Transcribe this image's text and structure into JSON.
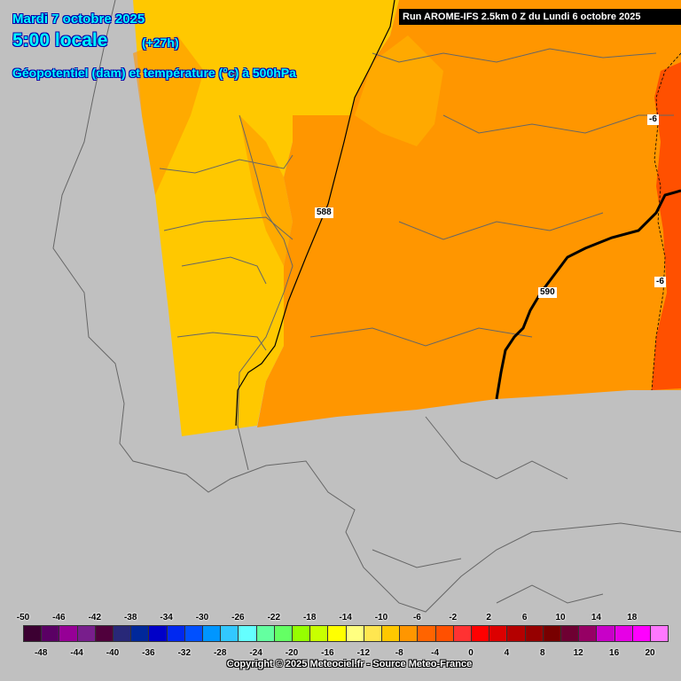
{
  "header": {
    "date": "Mardi 7 octobre 2025",
    "time": "5:00 locale",
    "lead": "(+27h)",
    "parameter": "Géopotentiel (dam) et température (°c) à 500hPa"
  },
  "run_banner": "Run AROME-IFS 2.5km 0 Z du Lundi 6 octobre 2025",
  "contour_labels": {
    "geopotential_588": "588",
    "geopotential_590": "590",
    "temp_minus6_top": "-6",
    "temp_minus6_mid": "-6"
  },
  "legend": {
    "top_labels": [
      "-50",
      "-46",
      "-42",
      "-38",
      "-34",
      "-30",
      "-26",
      "-22",
      "-18",
      "-14",
      "-10",
      "-6",
      "-2",
      "2",
      "6",
      "10",
      "14",
      "18"
    ],
    "bottom_labels": [
      "-48",
      "-44",
      "-40",
      "-36",
      "-32",
      "-28",
      "-24",
      "-20",
      "-16",
      "-12",
      "-8",
      "-4",
      "0",
      "4",
      "8",
      "12",
      "16",
      "20"
    ],
    "colors": [
      "#3c0032",
      "#5a0064",
      "#960096",
      "#781e8c",
      "#50003c",
      "#282878",
      "#00289a",
      "#0000c8",
      "#0028f0",
      "#0050ff",
      "#0096ff",
      "#32c8ff",
      "#64ffff",
      "#64ffa0",
      "#64ff64",
      "#96ff00",
      "#c8ff00",
      "#ffff00",
      "#ffff80",
      "#ffe650",
      "#ffc800",
      "#ff9600",
      "#ff6400",
      "#ff5000",
      "#ff3232",
      "#ff0000",
      "#dc0000",
      "#b40000",
      "#960000",
      "#780000",
      "#6e0032",
      "#960064",
      "#c800c8",
      "#e600e6",
      "#ff00ff",
      "#ff78ff"
    ]
  },
  "copyright": "Copyright © 2025 Meteociel.fr - Source Meteo-France"
}
